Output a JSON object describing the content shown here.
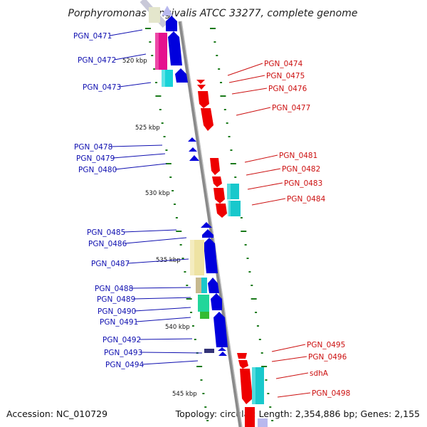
{
  "title": "Porphyromonas gingivalis ATCC 33277, complete genome",
  "footer": {
    "accession": "Accession: NC_010729",
    "summary": "Topology: circular; Length: 2,354,886 bp; Genes: 2,155"
  },
  "colors": {
    "left_label": "#1010b0",
    "right_label": "#cc1010",
    "backbone": "#8a8a8a",
    "tick": "#1a7a1a"
  },
  "scale_labels": [
    "520 kbp",
    "525 kbp",
    "530 kbp",
    "535 kbp",
    "540 kbp",
    "545 kbp"
  ],
  "left_genes": [
    "PGN_0471",
    "PGN_0472",
    "PGN_0473",
    "PGN_0478",
    "PGN_0479",
    "PGN_0480",
    "PGN_0485",
    "PGN_0486",
    "PGN_0487",
    "PGN_0488",
    "PGN_0489",
    "PGN_0490",
    "PGN_0491",
    "PGN_0492",
    "PGN_0493",
    "PGN_0494"
  ],
  "right_genes": [
    "PGN_0474",
    "PGN_0475",
    "PGN_0476",
    "PGN_0477",
    "PGN_0481",
    "PGN_0482",
    "PGN_0483",
    "PGN_0484",
    "PGN_0495",
    "PGN_0496",
    "sdhA",
    "PGN_0498"
  ]
}
